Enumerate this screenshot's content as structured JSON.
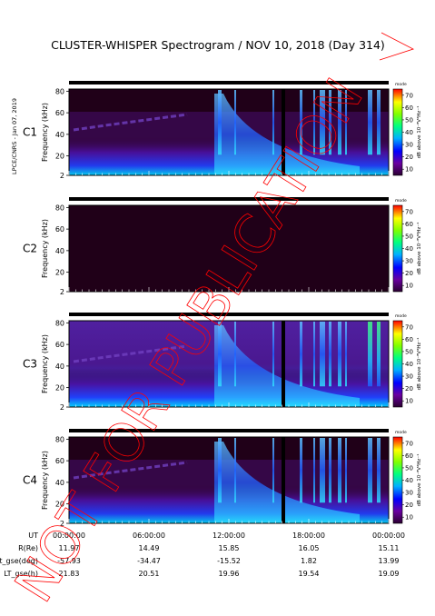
{
  "title": "CLUSTER-WHISPER Spectrogram / NOV 10, 2018 (Day 314)",
  "side_label": "LPCE/CNRS - Jan 07, 2019",
  "watermark": "NOT FOR PUBLICATION",
  "colors": {
    "background_dark": "#200018",
    "watermark": "#ff0000",
    "c3_label": "#00aa00"
  },
  "chart_data": [
    {
      "type": "heatmap",
      "panel": "C1",
      "ylabel": "Frequency (kHz)",
      "y_ticks": [
        2,
        20,
        40,
        60,
        80
      ],
      "ylim": [
        2,
        82
      ],
      "xlim": [
        "00:00:00",
        "24:00:00"
      ],
      "colorbar": {
        "label": "dB above 10⁻⁸V²Hz⁻¹",
        "ticks": [
          10,
          20,
          30,
          40,
          50,
          60,
          70
        ],
        "top_label": "mode"
      },
      "has_data": true
    },
    {
      "type": "heatmap",
      "panel": "C2",
      "ylabel": "Frequency (kHz)",
      "y_ticks": [
        2,
        20,
        40,
        60,
        80
      ],
      "ylim": [
        2,
        82
      ],
      "xlim": [
        "00:00:00",
        "24:00:00"
      ],
      "colorbar": {
        "label": "dB above 10⁻⁸V²Hz⁻¹",
        "ticks": [
          10,
          20,
          30,
          40,
          50,
          60,
          70
        ],
        "top_label": "mode"
      },
      "has_data": false
    },
    {
      "type": "heatmap",
      "panel": "C3",
      "ylabel": "Frequency (kHz)",
      "y_ticks": [
        2,
        20,
        40,
        60,
        80
      ],
      "ylim": [
        2,
        82
      ],
      "xlim": [
        "00:00:00",
        "24:00:00"
      ],
      "colorbar": {
        "label": "dB above 10⁻⁸V²Hz⁻¹",
        "ticks": [
          10,
          20,
          30,
          40,
          50,
          60,
          70
        ],
        "top_label": "mode"
      },
      "has_data": true
    },
    {
      "type": "heatmap",
      "panel": "C4",
      "ylabel": "Frequency (kHz)",
      "y_ticks": [
        2,
        20,
        40,
        60,
        80
      ],
      "ylim": [
        2,
        82
      ],
      "xlim": [
        "00:00:00",
        "24:00:00"
      ],
      "colorbar": {
        "label": "dB above 10⁻⁸V²Hz⁻¹",
        "ticks": [
          10,
          20,
          30,
          40,
          50,
          60,
          70
        ],
        "top_label": "mode"
      },
      "has_data": true
    }
  ],
  "ephemeris": {
    "rows": [
      {
        "label": "UT",
        "values": [
          "00:00:00",
          "06:00:00",
          "12:00:00",
          "18:00:00",
          "00:00:00"
        ]
      },
      {
        "label": "R(Re)",
        "values": [
          "11.97",
          "14.49",
          "15.85",
          "16.05",
          "15.11"
        ]
      },
      {
        "label": "Lat_gse(deg)",
        "values": [
          "-57.93",
          "-34.47",
          "-15.52",
          "1.82",
          "13.99"
        ]
      },
      {
        "label": "LT_gse(h)",
        "values": [
          "21.83",
          "20.51",
          "19.96",
          "19.54",
          "19.09"
        ]
      }
    ]
  }
}
